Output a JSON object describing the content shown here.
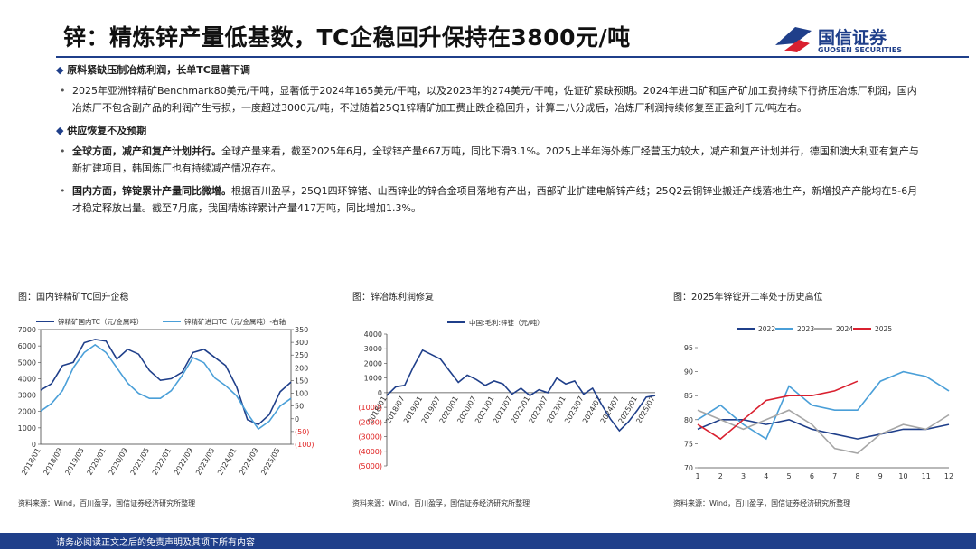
{
  "header": {
    "title": "锌：精炼锌产量低基数，TC企稳回升保持在3800元/吨",
    "logo_cn": "国信证券",
    "logo_en": "GUOSEN SECURITIES"
  },
  "sections": [
    {
      "heading": "原料紧缺压制冶炼利润，长单TC显著下调",
      "paragraphs": [
        {
          "lead": "",
          "text": "2025年亚洲锌精矿Benchmark80美元/干吨，显著低于2024年165美元/干吨，以及2023年的274美元/干吨，佐证矿紧缺预期。2024年进口矿和国产矿加工费持续下行挤压冶炼厂利润，国内冶炼厂不包含副产品的利润产生亏损，一度超过3000元/吨，不过随着25Q1锌精矿加工费止跌企稳回升，计算二八分成后，冶炼厂利润持续修复至正盈利千元/吨左右。"
        }
      ]
    },
    {
      "heading": "供应恢复不及预期",
      "paragraphs": [
        {
          "lead": "全球方面，减产和复产计划并行。",
          "text": "全球产量来看，截至2025年6月，全球锌产量667万吨，同比下滑3.1%。2025上半年海外炼厂经营压力较大，减产和复产计划并行，德国和澳大利亚有复产与新扩建项目，韩国炼厂也有持续减产情况存在。"
        },
        {
          "lead": "国内方面，锌锭累计产量同比微增。",
          "text": "根据百川盈孚，25Q1四环锌锗、山西锌业的锌合金项目落地有产出，西部矿业扩建电解锌产线；25Q2云铜锌业搬迁产线落地生产，新增投产产能均在5-6月才稳定释放出量。截至7月底，我国精炼锌累计产量417万吨，同比增加1.3%。"
        }
      ]
    }
  ],
  "chart_data": [
    {
      "type": "line",
      "title": "图：国内锌精矿TC回升企稳",
      "source": "资料来源：Wind，百川盈孚，国信证券经济研究所整理",
      "categories": [
        "2018/01",
        null,
        "2018/09",
        null,
        "2019/05",
        null,
        "2020/01",
        null,
        "2020/09",
        null,
        "2021/05",
        null,
        "2022/01",
        null,
        "2022/09",
        null,
        "2023/05",
        null,
        "2024/01",
        null,
        "2024/09",
        null,
        "2025/05",
        null
      ],
      "ylim": [
        0,
        7000
      ],
      "yticks": [
        0,
        1000,
        2000,
        3000,
        4000,
        5000,
        6000,
        7000
      ],
      "y2lim": [
        -100,
        350
      ],
      "y2ticks": [
        {
          "value": -100,
          "label": "(100)"
        },
        {
          "value": -50,
          "label": "(50)"
        },
        0,
        50,
        100,
        150,
        200,
        250,
        300,
        350
      ],
      "neg_label_color": "#e02020",
      "series": [
        {
          "name": "锌精矿国内TC（元/金属吨）",
          "color": "#1f3f8a",
          "values": [
            3300,
            3700,
            4800,
            5000,
            6200,
            6400,
            6300,
            5200,
            5800,
            5500,
            4500,
            3900,
            4000,
            4400,
            5600,
            5800,
            5300,
            4800,
            3500,
            1500,
            1200,
            1800,
            3200,
            3800
          ]
        },
        {
          "name": "锌精矿进口TC（元/金属吨）-右轴",
          "color": "#4a9fd8",
          "axis": "y2",
          "values": [
            30,
            60,
            110,
            200,
            260,
            290,
            260,
            200,
            140,
            100,
            80,
            80,
            110,
            170,
            240,
            220,
            160,
            130,
            90,
            20,
            -40,
            -10,
            50,
            80
          ]
        }
      ]
    },
    {
      "type": "line",
      "title": "图：锌冶炼利润修复",
      "source": "资料来源：Wind，百川盈孚，国信证券经济研究所整理",
      "categories": [
        "2018/01",
        null,
        "2018/07",
        null,
        "2019/01",
        null,
        "2019/07",
        null,
        "2020/01",
        null,
        "2020/07",
        null,
        "2021/01",
        null,
        "2021/07",
        null,
        "2022/01",
        null,
        "2022/07",
        null,
        "2023/01",
        null,
        "2023/07",
        null,
        "2024/01",
        null,
        "2024/07",
        null,
        "2025/01",
        null,
        "2025/07"
      ],
      "ylim": [
        -5000,
        4000
      ],
      "yticks": [
        {
          "value": -5000,
          "label": "(5000)"
        },
        {
          "value": -4000,
          "label": "(4000)"
        },
        {
          "value": -3000,
          "label": "(3000)"
        },
        {
          "value": -2000,
          "label": "(2000)"
        },
        {
          "value": -1000,
          "label": "(1000)"
        },
        0,
        1000,
        2000,
        3000,
        4000
      ],
      "neg_label_color": "#e02020",
      "series": [
        {
          "name": "中国:毛利:锌锭（元/吨）",
          "color": "#1f3f8a",
          "values": [
            -200,
            400,
            500,
            1800,
            2900,
            2600,
            2300,
            1500,
            700,
            1200,
            900,
            500,
            800,
            600,
            -100,
            300,
            -200,
            200,
            0,
            1000,
            600,
            800,
            -100,
            300,
            -800,
            -1800,
            -2600,
            -2000,
            -1200,
            -300,
            -200
          ]
        }
      ]
    },
    {
      "type": "line",
      "title": "图：2025年锌锭开工率处于历史高位",
      "source": "资料来源：Wind，百川盈孚，国信证券经济研究所整理",
      "categories": [
        "1",
        "2",
        "3",
        "4",
        "5",
        "6",
        "7",
        "8",
        "9",
        "10",
        "11",
        "12"
      ],
      "ylim": [
        70,
        95
      ],
      "yticks": [
        70,
        75,
        80,
        85,
        90,
        95
      ],
      "series": [
        {
          "name": "2022",
          "color": "#1f3f8a",
          "values": [
            78,
            80,
            80,
            79,
            80,
            78,
            77,
            76,
            77,
            78,
            78,
            79
          ]
        },
        {
          "name": "2023",
          "color": "#4a9fd8",
          "values": [
            80,
            83,
            79,
            76,
            87,
            83,
            82,
            82,
            88,
            90,
            89,
            86
          ]
        },
        {
          "name": "2024",
          "color": "#a6a6a6",
          "values": [
            82,
            80,
            78,
            80,
            82,
            79,
            74,
            73,
            77,
            79,
            78,
            81
          ]
        },
        {
          "name": "2025",
          "color": "#d9202f",
          "values": [
            79,
            76,
            80,
            84,
            85,
            85,
            86,
            88,
            null,
            null,
            null,
            null
          ]
        }
      ]
    }
  ],
  "footer": "请务必阅读正文之后的免责声明及其项下所有内容"
}
